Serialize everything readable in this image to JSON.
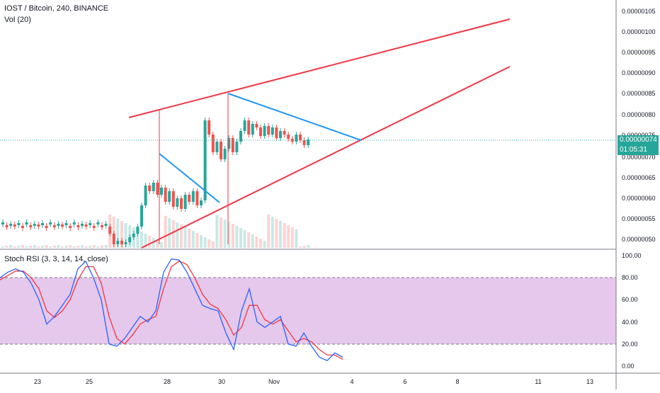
{
  "header": {
    "symbol_line": "IOST / Bitcoin, 240, BINANCE",
    "volume_label": "Vol (20)"
  },
  "rsi_panel": {
    "label": "Stoch RSI (3, 3, 14, 14, close)",
    "band_upper": 80,
    "band_lower": 20,
    "axis_labels": [
      "100.00",
      "80.00",
      "60.00",
      "40.00",
      "20.00",
      "0.00"
    ]
  },
  "price_axis": {
    "labels": [
      "0.00000105",
      "0.00000100",
      "0.00000095",
      "0.00000090",
      "0.00000085",
      "0.00000080",
      "0.00000075",
      "0.00000070",
      "0.00000065",
      "0.00000060",
      "0.00000055",
      "0.00000050"
    ]
  },
  "current_price": {
    "value_label": "0.00000074",
    "countdown_label": "01:05:31",
    "color": "#26a69a"
  },
  "date_axis": {
    "labels": [
      "23",
      "25",
      "28",
      "30",
      "Nov",
      "4",
      "6",
      "8",
      "11",
      "13"
    ]
  },
  "colors": {
    "up": "#26a69a",
    "down": "#ef5350",
    "trendline_red": "#f23645",
    "trendline_blue": "#2196f3",
    "rsi_k": "#2962ff",
    "rsi_d": "#f23645",
    "rsi_band_fill": "#e1bee7"
  },
  "chart_data": {
    "type": "candlestick",
    "series": [
      {
        "name": "price",
        "y_range": [
          4.8e-07,
          1.085e-06
        ]
      },
      {
        "name": "Stoch RSI %K",
        "values": [
          80,
          85,
          88,
          85,
          75,
          60,
          38,
          45,
          55,
          65,
          88,
          95,
          80,
          60,
          20,
          18,
          25,
          35,
          45,
          40,
          50,
          85,
          97,
          96,
          85,
          70,
          55,
          52,
          50,
          30,
          15,
          50,
          70,
          40,
          35,
          40,
          45,
          20,
          18,
          30,
          18,
          8,
          5,
          12,
          8
        ]
      },
      {
        "name": "Stoch RSI %D",
        "values": [
          78,
          82,
          86,
          86,
          80,
          70,
          50,
          44,
          50,
          60,
          78,
          90,
          90,
          75,
          45,
          25,
          20,
          28,
          38,
          42,
          45,
          70,
          90,
          95,
          92,
          80,
          65,
          56,
          52,
          42,
          28,
          35,
          55,
          55,
          42,
          38,
          42,
          32,
          22,
          25,
          22,
          15,
          10,
          10,
          6
        ]
      }
    ]
  }
}
